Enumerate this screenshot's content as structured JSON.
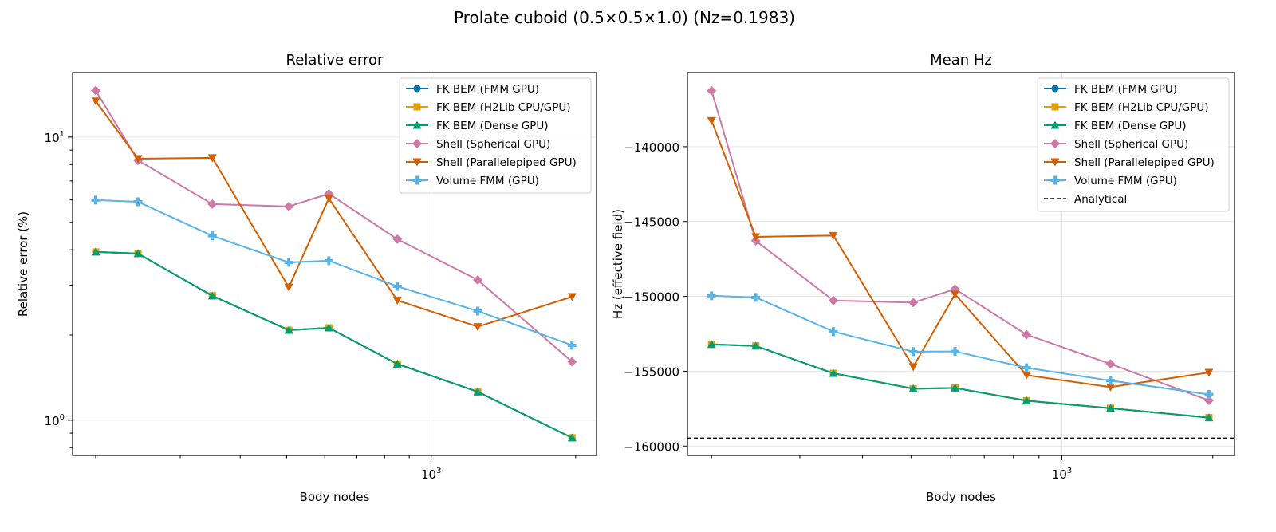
{
  "suptitle": "Prolate cuboid (0.5×0.5×1.0)  (Nz=0.1983)",
  "colors": {
    "fk_fmm": "#0072B2",
    "fk_h2lib": "#E69F00",
    "fk_dense": "#009E73",
    "shell_spherical": "#CC79A7",
    "shell_parallelepiped": "#D55E00",
    "volume_fmm": "#56B4E9",
    "analytical": "#000000"
  },
  "chart_data": [
    {
      "type": "line",
      "title": "Relative error",
      "xlabel": "Body nodes",
      "ylabel": "Relative error (%)",
      "xscale": "log",
      "yscale": "log",
      "xlim": [
        179,
        2210
      ],
      "ylim": [
        0.751,
        16.9
      ],
      "xticks_major": [
        {
          "value": 1000,
          "label": "10^3"
        }
      ],
      "xticks_minor": [
        200,
        300,
        400,
        500,
        600,
        700,
        800,
        900,
        2000
      ],
      "yticks_major": [
        {
          "value": 1,
          "label": "10^0"
        },
        {
          "value": 10,
          "label": "10^1"
        }
      ],
      "yticks_minor": [
        0.8,
        0.9,
        2,
        3,
        4,
        5,
        6,
        7,
        8,
        9
      ],
      "grid": true,
      "legend": "top-right",
      "x": [
        200,
        245,
        350,
        505,
        612,
        850,
        1250,
        1965
      ],
      "series": [
        {
          "name": "FK BEM (FMM GPU)",
          "color_key": "fk_fmm",
          "marker": "circle",
          "values": [
            3.93,
            3.88,
            2.75,
            2.08,
            2.12,
            1.58,
            1.26,
            0.867
          ]
        },
        {
          "name": "FK BEM (H2Lib CPU/GPU)",
          "color_key": "fk_h2lib",
          "marker": "square",
          "values": [
            3.93,
            3.88,
            2.75,
            2.08,
            2.12,
            1.58,
            1.26,
            0.867
          ]
        },
        {
          "name": "FK BEM (Dense GPU)",
          "color_key": "fk_dense",
          "marker": "triangle-up",
          "values": [
            3.93,
            3.88,
            2.75,
            2.08,
            2.12,
            1.58,
            1.26,
            0.867
          ]
        },
        {
          "name": "Shell (Spherical GPU)",
          "color_key": "shell_spherical",
          "marker": "diamond",
          "values": [
            14.6,
            8.28,
            5.8,
            5.69,
            6.31,
            4.36,
            3.13,
            1.61
          ]
        },
        {
          "name": "Shell (Parallelepiped GPU)",
          "color_key": "shell_parallelepiped",
          "marker": "triangle-down",
          "values": [
            13.4,
            8.39,
            8.45,
            2.95,
            6.07,
            2.65,
            2.14,
            2.73
          ]
        },
        {
          "name": "Volume FMM (GPU)",
          "color_key": "volume_fmm",
          "marker": "plus",
          "values": [
            5.99,
            5.91,
            4.48,
            3.61,
            3.66,
            2.97,
            2.43,
            1.84
          ]
        }
      ]
    },
    {
      "type": "line",
      "title": "Mean Hz",
      "xlabel": "Body nodes",
      "ylabel": "Hz (effective field)",
      "xscale": "log",
      "yscale": "linear",
      "xlim": [
        179,
        2210
      ],
      "ylim": [
        -160626,
        -135050
      ],
      "xticks_major": [
        {
          "value": 1000,
          "label": "10^3"
        }
      ],
      "xticks_minor": [
        200,
        300,
        400,
        500,
        600,
        700,
        800,
        900,
        2000
      ],
      "yticks_major": [
        {
          "value": -160000,
          "label": "−160000"
        },
        {
          "value": -155000,
          "label": "−155000"
        },
        {
          "value": -150000,
          "label": "−150000"
        },
        {
          "value": -145000,
          "label": "−145000"
        },
        {
          "value": -140000,
          "label": "−140000"
        }
      ],
      "yticks_minor": [],
      "grid": true,
      "legend": "top-right",
      "x": [
        200,
        245,
        350,
        505,
        612,
        850,
        1250,
        1965
      ],
      "series": [
        {
          "name": "FK BEM (FMM GPU)",
          "color_key": "fk_fmm",
          "marker": "circle",
          "values": [
            -153205,
            -153310,
            -155139,
            -156167,
            -156115,
            -156968,
            -157473,
            -158100
          ]
        },
        {
          "name": "FK BEM (H2Lib CPU/GPU)",
          "color_key": "fk_h2lib",
          "marker": "square",
          "values": [
            -153205,
            -153310,
            -155139,
            -156167,
            -156115,
            -156968,
            -157473,
            -158100
          ]
        },
        {
          "name": "FK BEM (Dense GPU)",
          "color_key": "fk_dense",
          "marker": "triangle-up",
          "values": [
            -153205,
            -153310,
            -155139,
            -156167,
            -156115,
            -156968,
            -157473,
            -158100
          ]
        },
        {
          "name": "Shell (Spherical GPU)",
          "color_key": "shell_spherical",
          "marker": "diamond",
          "values": [
            -136267,
            -146285,
            -150279,
            -150418,
            -149512,
            -152561,
            -154512,
            -156951
          ]
        },
        {
          "name": "Shell (Parallelepiped GPU)",
          "color_key": "shell_parallelepiped",
          "marker": "triangle-down",
          "values": [
            -138264,
            -146024,
            -145937,
            -154703,
            -149861,
            -155261,
            -156062,
            -155087
          ]
        },
        {
          "name": "Volume FMM (GPU)",
          "color_key": "volume_fmm",
          "marker": "plus",
          "values": [
            -149965,
            -150070,
            -152352,
            -153693,
            -153676,
            -154773,
            -155627,
            -156550
          ]
        }
      ],
      "hlines": [
        {
          "name": "Analytical",
          "color_key": "analytical",
          "style": "dashed",
          "value": -159477
        }
      ]
    }
  ]
}
